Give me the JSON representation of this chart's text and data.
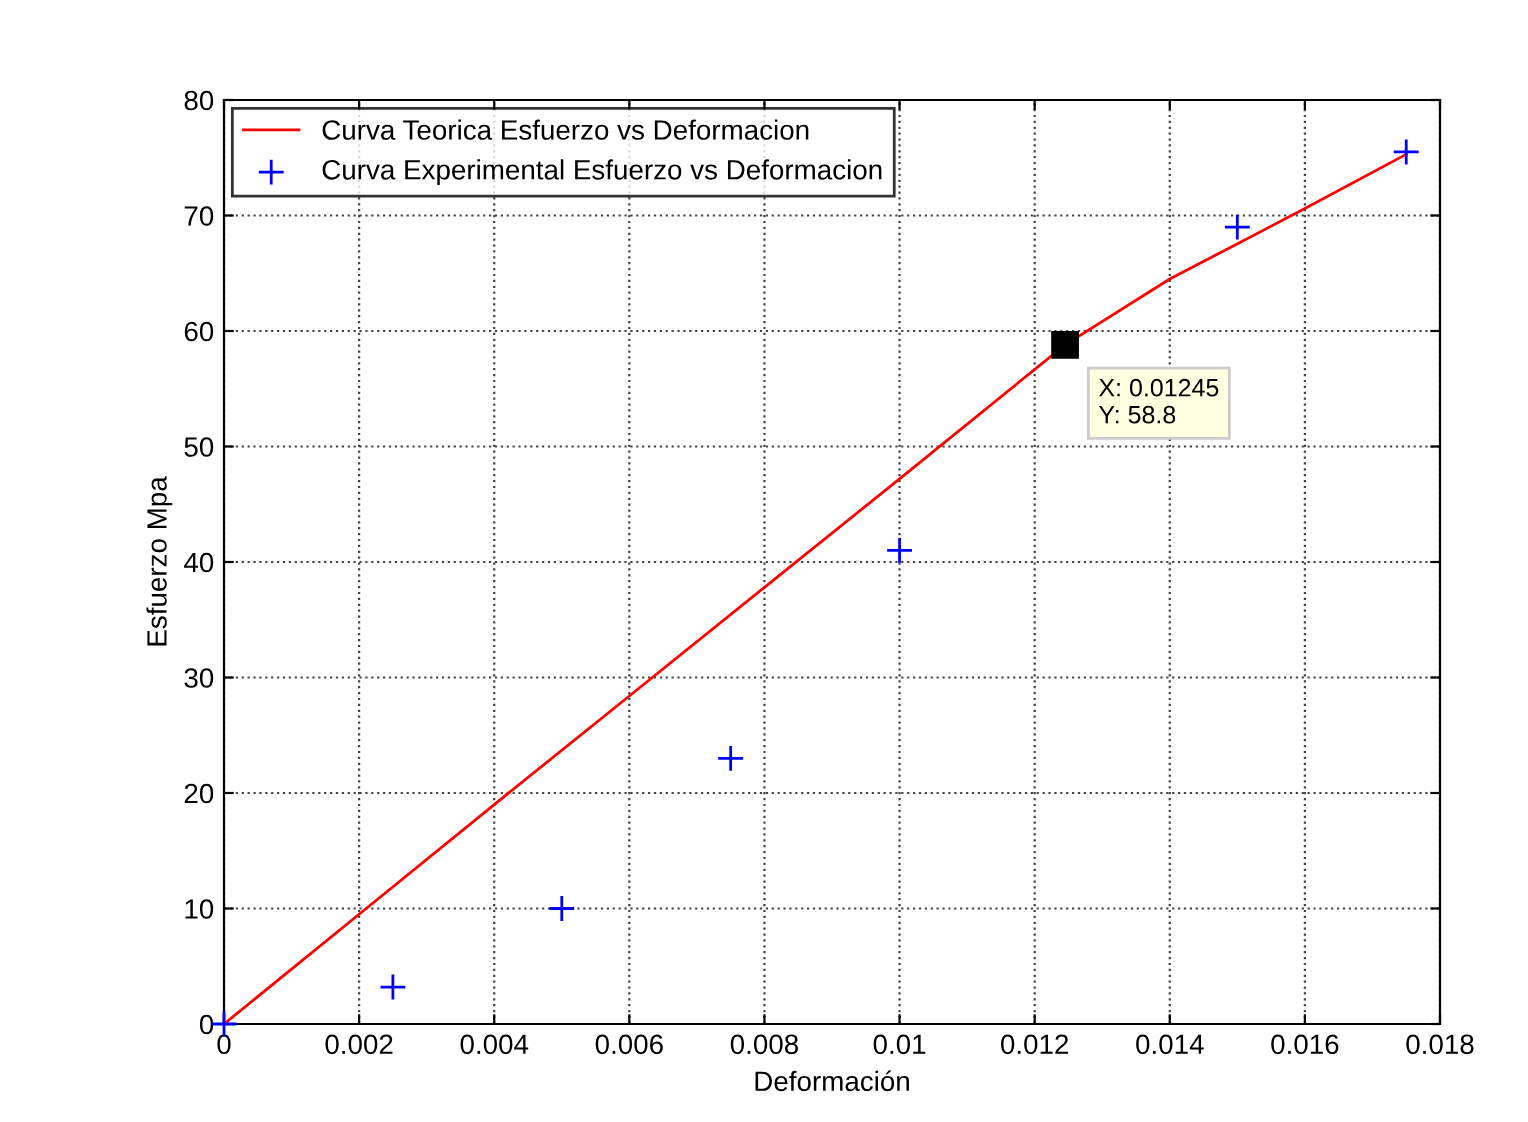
{
  "chart_data": {
    "type": "line",
    "xlabel": "Deformación",
    "ylabel": "Esfuerzo Mpa",
    "xlim": [
      0,
      0.018
    ],
    "ylim": [
      0,
      80
    ],
    "xticks": [
      0,
      0.002,
      0.004,
      0.006,
      0.008,
      0.01,
      0.012,
      0.014,
      0.016,
      0.018
    ],
    "yticks": [
      0,
      10,
      20,
      30,
      40,
      50,
      60,
      70,
      80
    ],
    "grid": true,
    "legend": "top left",
    "series": [
      {
        "name": "Curva Teorica Esfuerzo vs Deformacion",
        "color": "#ff0000",
        "marker": "none",
        "line_style": "solid",
        "x": [
          0,
          0.002,
          0.004,
          0.006,
          0.008,
          0.01,
          0.01245,
          0.014,
          0.016,
          0.0175
        ],
        "values": [
          0,
          9.5,
          19,
          28.4,
          37.8,
          47.2,
          58.8,
          64.5,
          70.6,
          75.3
        ]
      },
      {
        "name": "Curva Experimental Esfuerzo vs Deformacion",
        "type": "scatter",
        "color": "#0000ff",
        "marker": "cross",
        "x": [
          0,
          0.0025,
          0.005,
          0.0075,
          0.01,
          0.015,
          0.0175
        ],
        "values": [
          0,
          3.2,
          10,
          23,
          41,
          69,
          75.5
        ]
      }
    ],
    "annotations": [
      {
        "text": "X: 0.01245\nY: 58.8",
        "x": 0.01245,
        "y": 58.8
      }
    ]
  }
}
